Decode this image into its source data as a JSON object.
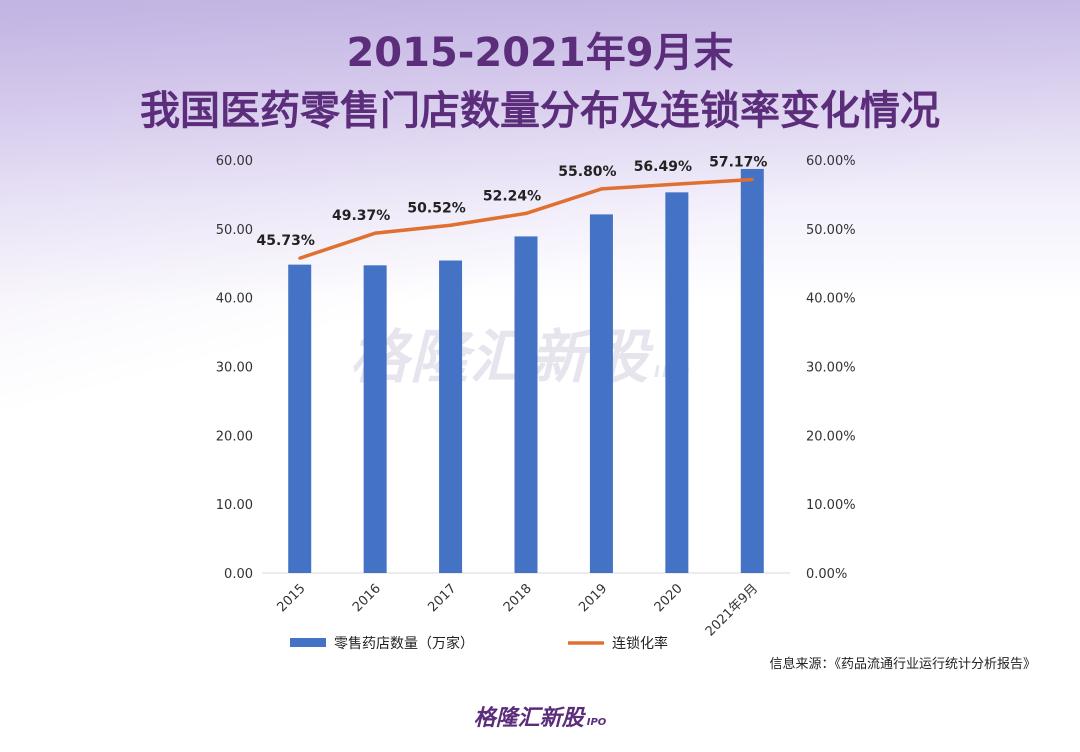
{
  "title_line1": "2015-2021年9月末",
  "title_line2": "我国医药零售门店数量分布及连锁率变化情况",
  "source": "信息来源：《药品流通行业运行统计分析报告》",
  "logo": {
    "text": "格隆汇新股",
    "suffix": "IPO"
  },
  "watermark": {
    "text": "格隆汇新股",
    "suffix": "IPO"
  },
  "colors": {
    "bar": "#4472c4",
    "line": "#e07030",
    "title": "#5b2d7a"
  },
  "chart_data": {
    "type": "bar",
    "title": "",
    "categories": [
      "2015",
      "2016",
      "2017",
      "2018",
      "2019",
      "2020",
      "2021年9月"
    ],
    "series": [
      {
        "name": "零售药店数量（万家）",
        "type": "bar",
        "axis": "left",
        "values": [
          44.8,
          44.7,
          45.4,
          48.9,
          52.1,
          55.3,
          58.7
        ]
      },
      {
        "name": "连锁化率",
        "type": "line",
        "axis": "right",
        "values": [
          45.73,
          49.37,
          50.52,
          52.24,
          55.8,
          56.49,
          57.17
        ],
        "labels": [
          "45.73%",
          "49.37%",
          "50.52%",
          "52.24%",
          "55.80%",
          "56.49%",
          "57.17%"
        ]
      }
    ],
    "y_left": {
      "ylim": [
        0,
        60
      ],
      "ticks": [
        "0.00",
        "10.00",
        "20.00",
        "30.00",
        "40.00",
        "50.00",
        "60.00"
      ]
    },
    "y_right": {
      "ylim": [
        0,
        60
      ],
      "ticks": [
        "0.00%",
        "10.00%",
        "20.00%",
        "30.00%",
        "40.00%",
        "50.00%",
        "60.00%"
      ]
    },
    "grid": false,
    "legend_position": "bottom-left"
  }
}
